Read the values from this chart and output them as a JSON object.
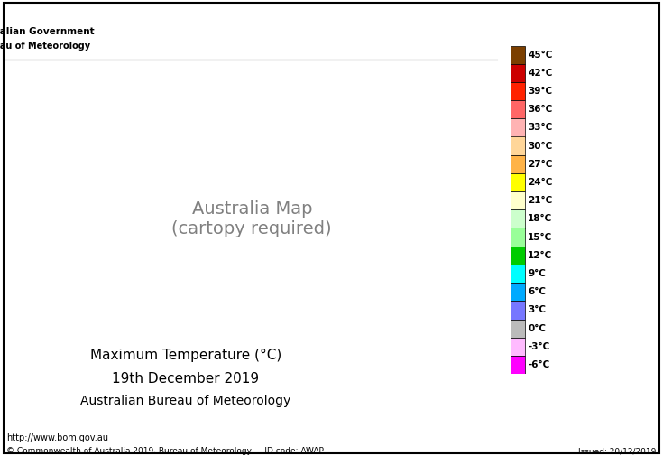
{
  "title_line1": "Maximum Temperature (°C)",
  "title_line2": "19th December 2019",
  "title_line3": "Australian Bureau of Meteorology",
  "footer_left": "© Commonwealth of Australia 2019, Bureau of Meteorology     ID code: AWAP",
  "footer_right": "Issued: 20/12/2019",
  "footer_url": "http://www.bom.gov.au",
  "logo_text1": "Australian Government",
  "logo_text2": "Bureau of Meteorology",
  "temp_levels": [
    45,
    42,
    39,
    36,
    33,
    30,
    27,
    24,
    21,
    18,
    15,
    12,
    9,
    6,
    3,
    0,
    -3,
    -6
  ],
  "temp_colors": [
    "#7B3F00",
    "#CC0000",
    "#FF2200",
    "#FF6666",
    "#FFB3B3",
    "#FFD699",
    "#FFB347",
    "#FFFF00",
    "#FFFFCC",
    "#CCFFCC",
    "#99FF99",
    "#00CC00",
    "#00FFFF",
    "#00AAFF",
    "#7777FF",
    "#BBBBBB",
    "#FFBBFF",
    "#FF00FF"
  ],
  "background_color": "#FFFFFF",
  "map_bg": "#AADDFF"
}
